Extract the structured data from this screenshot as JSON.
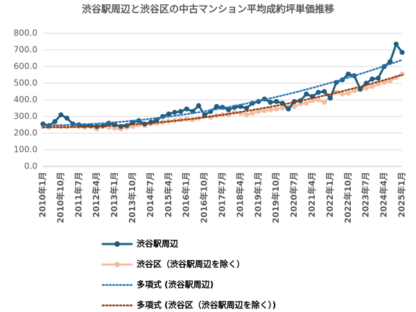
{
  "chart_data": {
    "type": "line",
    "title": "渋谷駅周辺と渋谷区の中古マンション平均成約坪単価推移",
    "categories": [
      "2010年1月",
      null,
      null,
      "2010年10月",
      null,
      null,
      "2011年7月",
      null,
      null,
      "2012年4月",
      null,
      null,
      "2013年1月",
      null,
      null,
      "2013年10月",
      null,
      null,
      "2014年7月",
      null,
      null,
      "2015年4月",
      null,
      null,
      "2016年1月",
      null,
      null,
      "2016年10月",
      null,
      null,
      "2017年7月",
      null,
      null,
      "2018年4月",
      null,
      null,
      "2019年1月",
      null,
      null,
      "2019年10月",
      null,
      null,
      "2020年7月",
      null,
      null,
      "2021年4月",
      null,
      null,
      "2022年1月",
      null,
      null,
      "2022年10月",
      null,
      null,
      "2023年7月",
      null,
      null,
      "2024年4月",
      null,
      null,
      "2025年1月"
    ],
    "series": [
      {
        "name": "渋谷駅周辺",
        "color": "#1d5d80",
        "style": "solid",
        "marker": true,
        "values": [
          255,
          245,
          270,
          310,
          290,
          255,
          250,
          245,
          245,
          240,
          245,
          260,
          250,
          240,
          245,
          265,
          275,
          255,
          265,
          280,
          300,
          315,
          325,
          330,
          345,
          330,
          365,
          310,
          330,
          360,
          355,
          340,
          355,
          360,
          350,
          380,
          390,
          405,
          385,
          390,
          380,
          345,
          390,
          395,
          435,
          420,
          445,
          450,
          410,
          505,
          520,
          555,
          545,
          465,
          500,
          525,
          530,
          600,
          630,
          735,
          685
        ]
      },
      {
        "name": "渋谷区（渋谷駅周辺を除く）",
        "color": "#f5bca0",
        "style": "solid",
        "marker": true,
        "values": [
          240,
          235,
          245,
          240,
          240,
          245,
          240,
          235,
          240,
          225,
          240,
          235,
          230,
          225,
          235,
          240,
          250,
          245,
          255,
          260,
          265,
          270,
          275,
          280,
          285,
          280,
          290,
          300,
          295,
          305,
          310,
          310,
          325,
          320,
          310,
          320,
          330,
          335,
          340,
          345,
          350,
          355,
          360,
          375,
          380,
          395,
          400,
          385,
          420,
          445,
          435,
          440,
          455,
          460,
          470,
          480,
          495,
          505,
          515,
          535,
          555
        ]
      },
      {
        "name": "多項式 (渋谷駅周辺)",
        "color": "#2e75b6",
        "style": "dotted",
        "marker": false,
        "values": [
          245,
          245.5,
          246.2,
          247.2,
          248.3,
          249.7,
          251.2,
          253,
          254.9,
          257.1,
          259.4,
          262,
          264.8,
          267.8,
          271,
          274.4,
          278,
          281.8,
          285.8,
          290,
          294.5,
          299.1,
          303.9,
          309,
          314.2,
          319.7,
          325.3,
          331.2,
          337.3,
          343.5,
          350,
          356.7,
          363.6,
          370.7,
          378,
          385.5,
          393.2,
          401.2,
          409.3,
          417.6,
          426.2,
          434.9,
          443.8,
          453,
          462.4,
          471.9,
          481.7,
          491.7,
          501.8,
          512.2,
          522.8,
          533.6,
          544.6,
          555.9,
          567.3,
          578.9,
          590.7,
          602.7,
          614.9,
          627.3,
          640
        ]
      },
      {
        "name": "多項式 (渋谷区（渋谷駅周辺を除く）)",
        "color": "#8b3a10",
        "style": "dotted",
        "marker": false,
        "values": [
          235,
          234.8,
          234.9,
          235.1,
          235.5,
          236,
          236.8,
          237.7,
          238.9,
          240.2,
          241.7,
          243.3,
          245.2,
          247.2,
          249.5,
          251.9,
          254.5,
          257.3,
          260.2,
          263.4,
          266.7,
          270.2,
          273.9,
          277.8,
          281.8,
          286.1,
          290.5,
          295.1,
          299.9,
          304.9,
          310,
          315.4,
          320.9,
          326.6,
          332.5,
          338.6,
          344.8,
          351.3,
          357.9,
          364.7,
          371.7,
          378.9,
          386.3,
          393.8,
          401.6,
          409.5,
          417.6,
          425.9,
          434.3,
          443,
          451.8,
          460.8,
          470,
          479.4,
          488.9,
          498.6,
          508.5,
          518.6,
          528.8,
          539.3,
          549.9
        ]
      }
    ],
    "ylim": [
      0,
      800
    ],
    "yticks": [
      {
        "value": 0,
        "label": "0.0"
      },
      {
        "value": 100,
        "label": "100.0"
      },
      {
        "value": 200,
        "label": "200.0"
      },
      {
        "value": 300,
        "label": "300.0"
      },
      {
        "value": 400,
        "label": "400.0"
      },
      {
        "value": 500,
        "label": "500.0"
      },
      {
        "value": 600,
        "label": "600.0"
      },
      {
        "value": 700,
        "label": "700.0"
      },
      {
        "value": 800,
        "label": "800.0"
      }
    ],
    "grid": true,
    "legend": "bottom"
  }
}
